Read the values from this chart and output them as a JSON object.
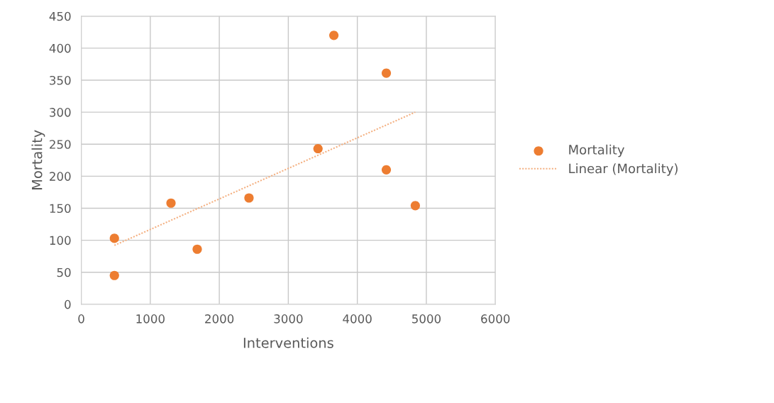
{
  "chart_data": {
    "type": "scatter",
    "xlabel": "Interventions",
    "ylabel": "Mortality",
    "xlim": [
      0,
      6000
    ],
    "xticks": [
      0,
      1000,
      2000,
      3000,
      4000,
      5000,
      6000
    ],
    "ylim": [
      0,
      450
    ],
    "yticks": [
      0,
      50,
      100,
      150,
      200,
      250,
      300,
      350,
      400,
      450
    ],
    "grid": true,
    "legend": "right",
    "marker": "circle",
    "series": [
      {
        "name": "Mortality",
        "color": "#ed7d31",
        "x": [
          480,
          480,
          1300,
          1680,
          2430,
          3430,
          3660,
          4420,
          4420,
          4840
        ],
        "values": [
          45,
          103,
          158,
          86,
          166,
          243,
          420,
          361,
          210,
          154
        ]
      },
      {
        "name": "Linear (Mortality)",
        "type": "line",
        "color": "#f4b183",
        "line_style": "dotted",
        "marker": "none",
        "x": [
          480,
          4840
        ],
        "values": [
          92,
          300
        ]
      }
    ]
  }
}
